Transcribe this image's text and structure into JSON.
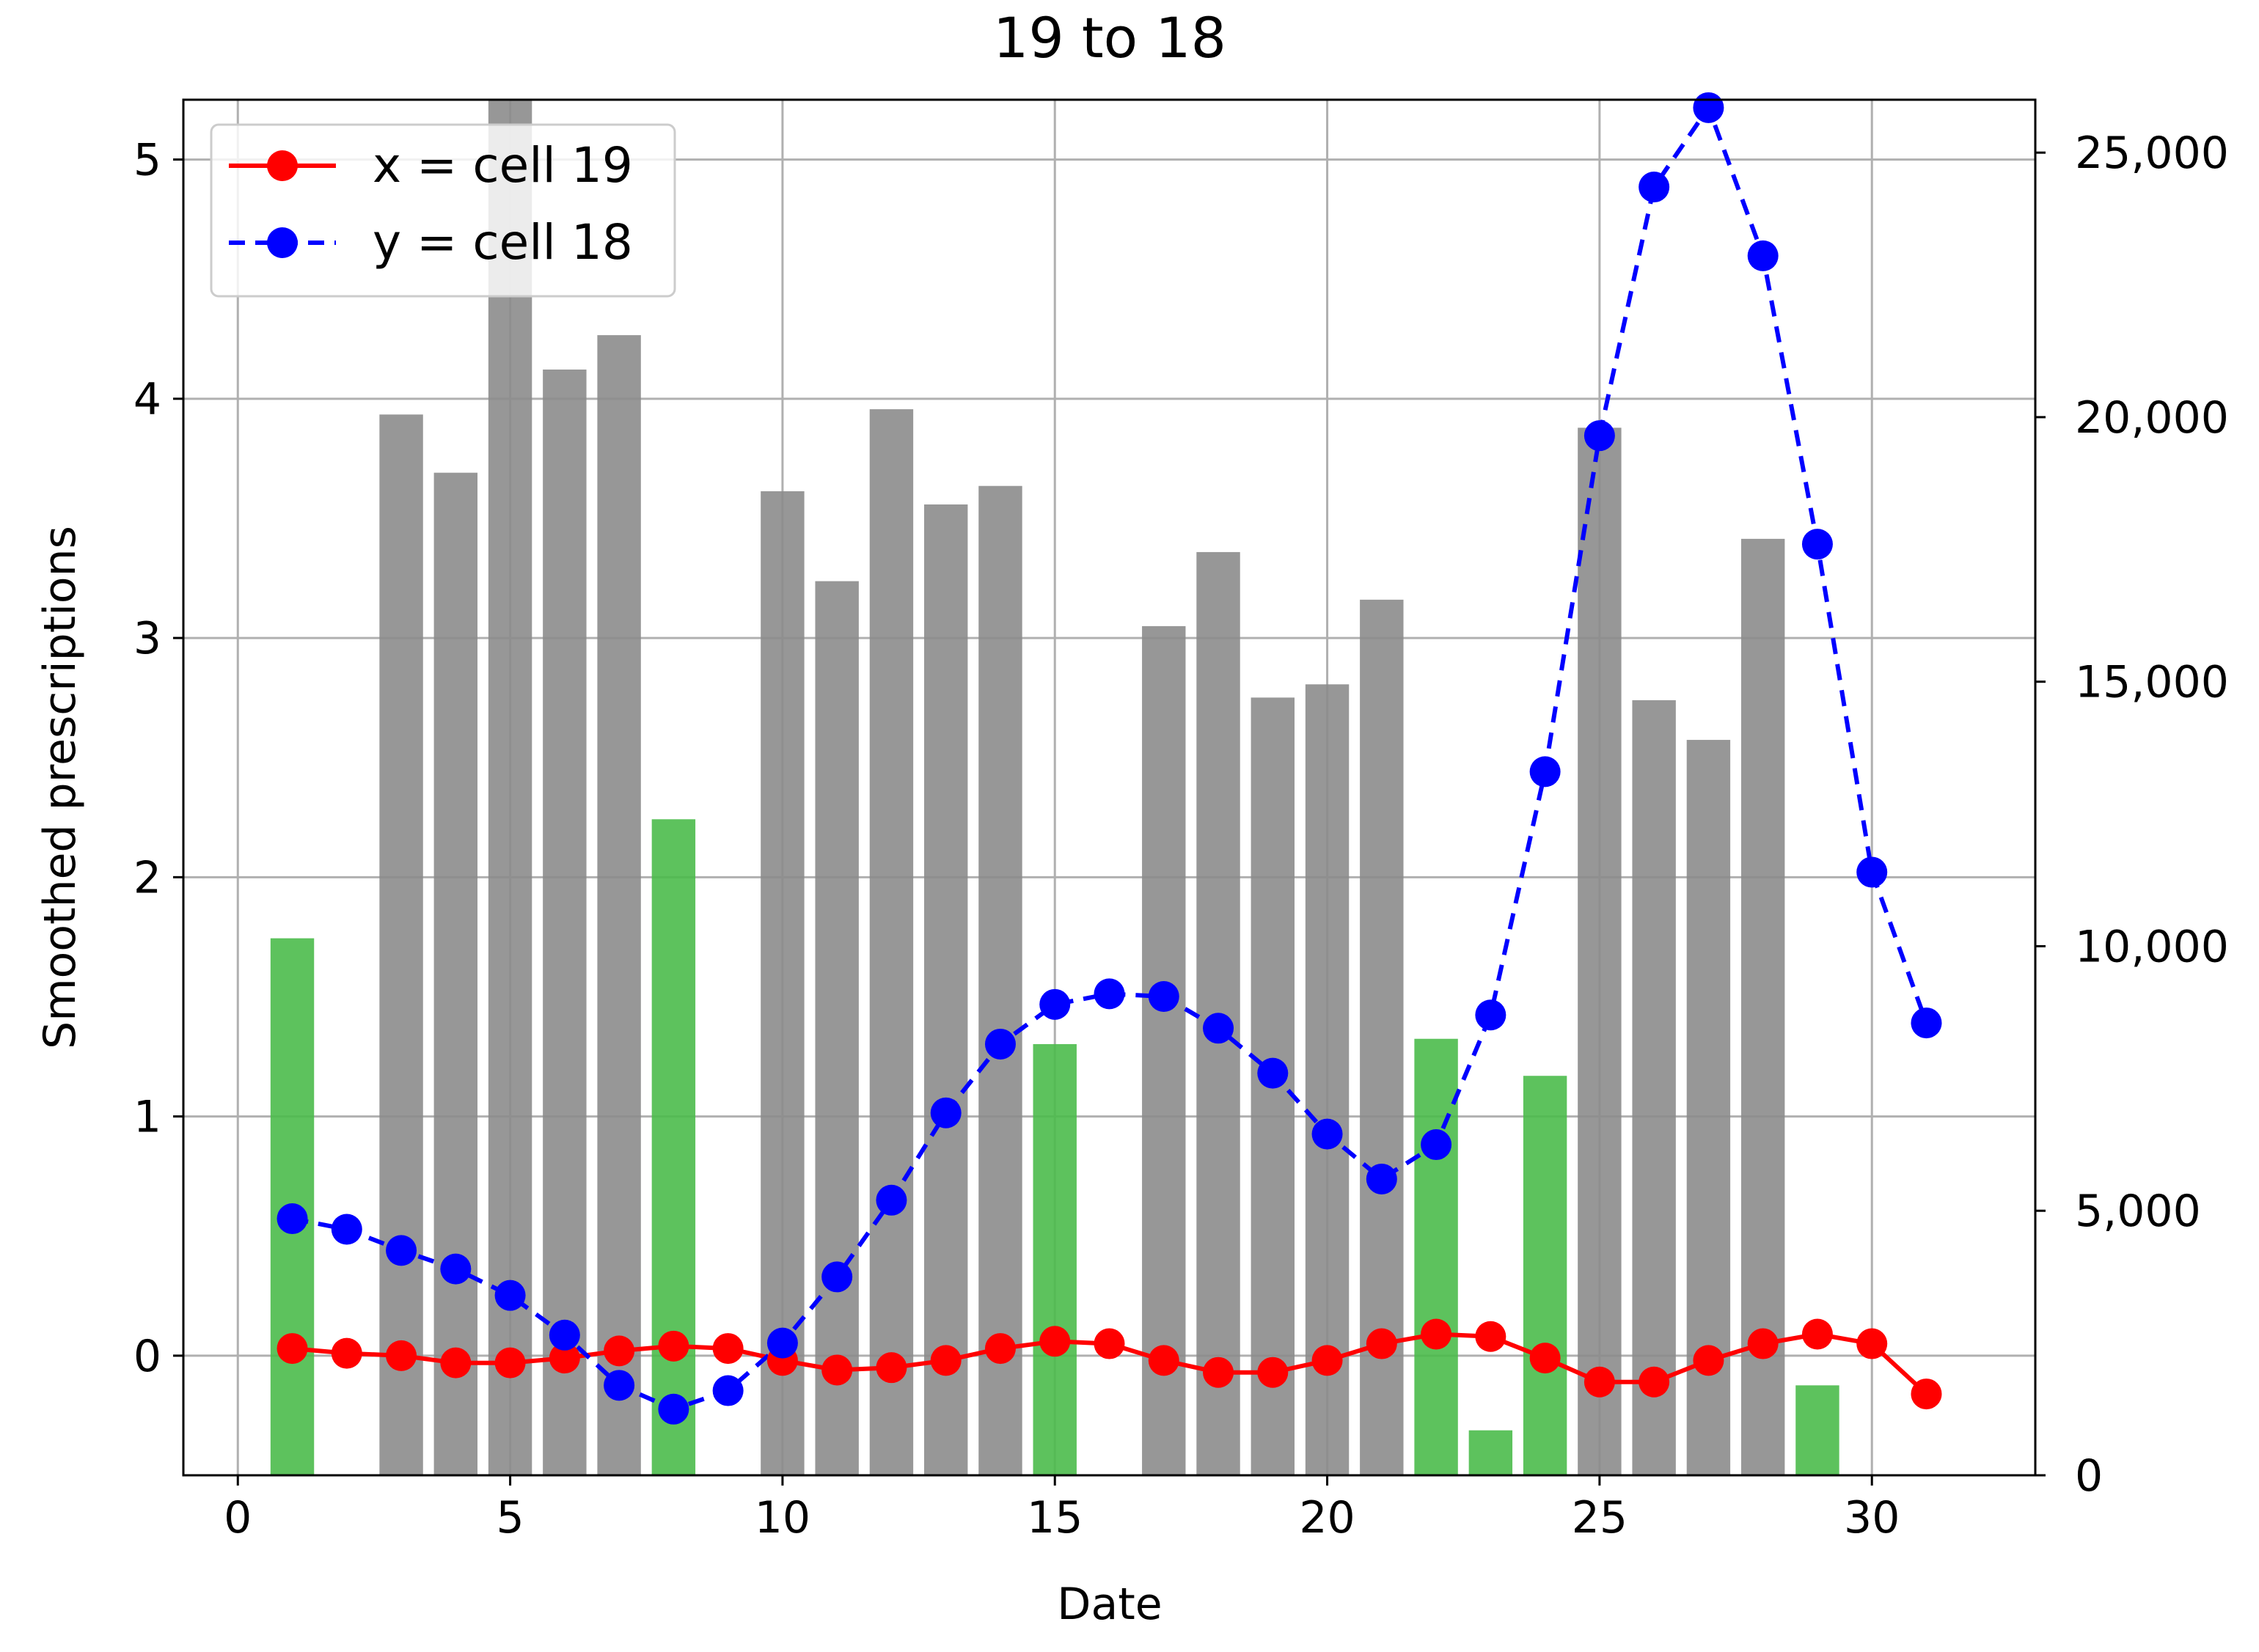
{
  "chart_data": {
    "type": "line",
    "title": "19 to 18",
    "xlabel": "Date",
    "ylabel": "Smoothed prescriptions",
    "y2label": "",
    "xlim": [
      -1,
      33
    ],
    "ylim": [
      -0.5,
      5.25
    ],
    "y2lim": [
      0,
      26000
    ],
    "xticks": [
      0,
      5,
      10,
      15,
      20,
      25,
      30
    ],
    "yticks": [
      0,
      1,
      2,
      3,
      4,
      5
    ],
    "y2ticks": [
      0,
      5000,
      10000,
      15000,
      20000,
      25000
    ],
    "y2ticklabels": [
      "0",
      "5,000",
      "10,000",
      "15,000",
      "20,000",
      "25,000"
    ],
    "grid": true,
    "legend_position": "top-left",
    "series": [
      {
        "name": "x = cell 19",
        "axis": "left",
        "style": "solid",
        "color": "#ff0000",
        "x": [
          1,
          2,
          3,
          4,
          5,
          6,
          7,
          8,
          9,
          10,
          11,
          12,
          13,
          14,
          15,
          16,
          17,
          18,
          19,
          20,
          21,
          22,
          23,
          24,
          25,
          26,
          27,
          28,
          29,
          30,
          31
        ],
        "y": [
          0.03,
          0.01,
          0.0,
          -0.03,
          -0.03,
          -0.01,
          0.02,
          0.04,
          0.03,
          -0.02,
          -0.06,
          -0.05,
          -0.02,
          0.03,
          0.06,
          0.05,
          -0.02,
          -0.07,
          -0.07,
          -0.02,
          0.05,
          0.09,
          0.08,
          -0.01,
          -0.11,
          -0.11,
          -0.02,
          0.05,
          0.09,
          0.05,
          -0.16
        ]
      },
      {
        "name": "y = cell 18",
        "axis": "right",
        "style": "dashed",
        "color": "#0000ff",
        "x": [
          1,
          2,
          3,
          4,
          5,
          6,
          7,
          8,
          9,
          10,
          11,
          12,
          13,
          14,
          15,
          16,
          17,
          18,
          19,
          20,
          21,
          22,
          23,
          24,
          25,
          26,
          27,
          28,
          29,
          30,
          31
        ],
        "y": [
          4850,
          4650,
          4250,
          3900,
          3400,
          2650,
          1700,
          1250,
          1600,
          2500,
          3750,
          5200,
          6850,
          8150,
          8900,
          9100,
          9050,
          8450,
          7600,
          6450,
          5600,
          6250,
          8700,
          13300,
          19650,
          24350,
          25850,
          23050,
          17600,
          11400,
          8550
        ]
      }
    ],
    "bars": [
      {
        "name": "",
        "axis": "right",
        "color": "#4bbb4b",
        "x": [
          1,
          8,
          15,
          22,
          23,
          24,
          29
        ],
        "y": [
          10150,
          12400,
          8150,
          8250,
          850,
          7550,
          1700
        ]
      },
      {
        "name": "",
        "axis": "right",
        "color": "#8c8c8c",
        "x": [
          3,
          4,
          5,
          6,
          7,
          10,
          11,
          12,
          13,
          14,
          17,
          18,
          19,
          20,
          21,
          25,
          26,
          27,
          28
        ],
        "y": [
          20050,
          18950,
          26000,
          20900,
          21550,
          18600,
          16900,
          20150,
          18350,
          18700,
          16050,
          17450,
          14700,
          14950,
          16550,
          19800,
          14650,
          13900,
          17700
        ]
      }
    ]
  }
}
